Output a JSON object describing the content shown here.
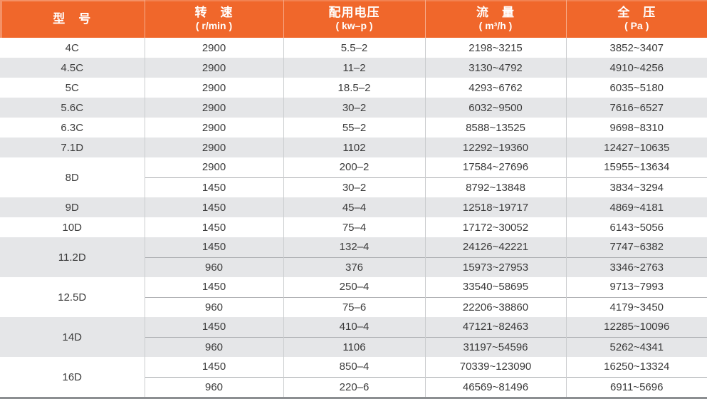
{
  "table": {
    "accent_color": "#f0672b",
    "stripe_color": "#e5e6e8",
    "bottom_border_color": "#8b8e91",
    "header": {
      "columns": [
        {
          "title": "型　号",
          "unit": ""
        },
        {
          "title": "转　速",
          "unit": "( r/min )"
        },
        {
          "title": "配用电压",
          "unit": "( kw–p )"
        },
        {
          "title": "流　量",
          "unit": "( m³/h )"
        },
        {
          "title": "全　压",
          "unit": "( Pa )"
        }
      ]
    },
    "groups": [
      {
        "model": "4C",
        "shaded": false,
        "rows": [
          {
            "speed": "2900",
            "power": "5.5–2",
            "flow": "2198~3215",
            "pressure": "3852~3407"
          }
        ]
      },
      {
        "model": "4.5C",
        "shaded": true,
        "rows": [
          {
            "speed": "2900",
            "power": "11–2",
            "flow": "3130~4792",
            "pressure": "4910~4256"
          }
        ]
      },
      {
        "model": "5C",
        "shaded": false,
        "rows": [
          {
            "speed": "2900",
            "power": "18.5–2",
            "flow": "4293~6762",
            "pressure": "6035~5180"
          }
        ]
      },
      {
        "model": "5.6C",
        "shaded": true,
        "rows": [
          {
            "speed": "2900",
            "power": "30–2",
            "flow": "6032~9500",
            "pressure": "7616~6527"
          }
        ]
      },
      {
        "model": "6.3C",
        "shaded": false,
        "rows": [
          {
            "speed": "2900",
            "power": "55–2",
            "flow": "8588~13525",
            "pressure": "9698~8310"
          }
        ]
      },
      {
        "model": "7.1D",
        "shaded": true,
        "rows": [
          {
            "speed": "2900",
            "power": "1102",
            "flow": "12292~19360",
            "pressure": "12427~10635"
          }
        ]
      },
      {
        "model": "8D",
        "shaded": false,
        "rows": [
          {
            "speed": "2900",
            "power": "200–2",
            "flow": "17584~27696",
            "pressure": "15955~13634"
          },
          {
            "speed": "1450",
            "power": "30–2",
            "flow": "8792~13848",
            "pressure": "3834~3294"
          }
        ]
      },
      {
        "model": "9D",
        "shaded": true,
        "rows": [
          {
            "speed": "1450",
            "power": "45–4",
            "flow": "12518~19717",
            "pressure": "4869~4181"
          }
        ]
      },
      {
        "model": "10D",
        "shaded": false,
        "rows": [
          {
            "speed": "1450",
            "power": "75–4",
            "flow": "17172~30052",
            "pressure": "6143~5056"
          }
        ]
      },
      {
        "model": "11.2D",
        "shaded": true,
        "rows": [
          {
            "speed": "1450",
            "power": "132–4",
            "flow": "24126~42221",
            "pressure": "7747~6382"
          },
          {
            "speed": "960",
            "power": "376",
            "flow": "15973~27953",
            "pressure": "3346~2763"
          }
        ]
      },
      {
        "model": "12.5D",
        "shaded": false,
        "rows": [
          {
            "speed": "1450",
            "power": "250–4",
            "flow": "33540~58695",
            "pressure": "9713~7993"
          },
          {
            "speed": "960",
            "power": "75–6",
            "flow": "22206~38860",
            "pressure": "4179~3450"
          }
        ]
      },
      {
        "model": "14D",
        "shaded": true,
        "rows": [
          {
            "speed": "1450",
            "power": "410–4",
            "flow": "47121~82463",
            "pressure": "12285~10096"
          },
          {
            "speed": "960",
            "power": "1106",
            "flow": "31197~54596",
            "pressure": "5262~4341"
          }
        ]
      },
      {
        "model": "16D",
        "shaded": false,
        "rows": [
          {
            "speed": "1450",
            "power": "850–4",
            "flow": "70339~123090",
            "pressure": "16250~13324"
          },
          {
            "speed": "960",
            "power": "220–6",
            "flow": "46569~81496",
            "pressure": "6911~5696"
          }
        ]
      }
    ]
  }
}
